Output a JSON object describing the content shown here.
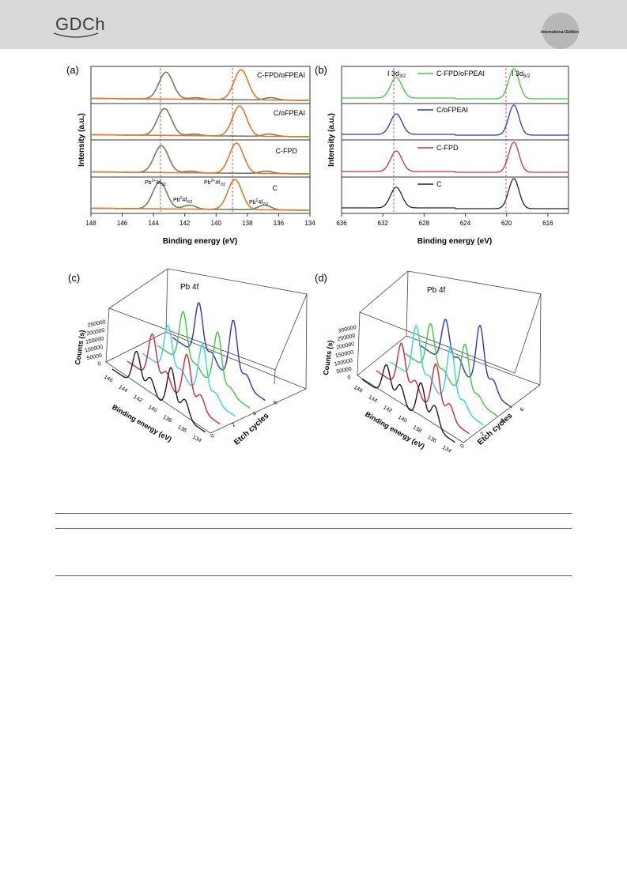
{
  "header": {
    "logo_text": "GDCh",
    "edition": "International Edition"
  },
  "panels": {
    "a": {
      "label": "(a)",
      "xlabel": "Binding energy (eV)",
      "ylabel": "Intensity (a.u.)",
      "ticks": [
        "148",
        "146",
        "144",
        "142",
        "140",
        "138",
        "136",
        "134"
      ],
      "traces": [
        "C-FPD/oFPEAI",
        "C/oFPEAI",
        "C-FPD",
        "C"
      ],
      "peak_labels": {
        "p1": "Pb",
        "p1_sup": "2+",
        "p1_rest": "4f",
        "p1_sub": "5/2",
        "p2": "Pb",
        "p2_sup": "0",
        "p2_rest": "4f",
        "p2_sub": "5/2",
        "p3": "Pb",
        "p3_sup": "2+",
        "p3_rest": "4f",
        "p3_sub": "7/2",
        "p4": "Pb",
        "p4_sup": "0",
        "p4_rest": "4f",
        "p4_sub": "7/2"
      }
    },
    "b": {
      "label": "(b)",
      "xlabel": "Binding energy (eV)",
      "ylabel": "Intensity (a.u.)",
      "ticks": [
        "636",
        "632",
        "628",
        "624",
        "620",
        "616"
      ],
      "traces": [
        "C-FPD/oFPEAI",
        "C/oFPEAI",
        "C-FPD",
        "C"
      ],
      "peak_left": "I 3d",
      "peak_left_sub": "3/2",
      "peak_right": "I 3d",
      "peak_right_sub": "5/2",
      "colors": [
        "#3ec83e",
        "#2f35c0",
        "#c8323a",
        "#222222"
      ]
    },
    "c": {
      "label": "(c)",
      "title": "Pb 4f",
      "zlabel": "Counts (s)",
      "xlabel": "Binding energy (eV)",
      "ylabel": "Etch cycles",
      "zticks": [
        "250000",
        "200000",
        "150000",
        "100000",
        "50000",
        "0"
      ],
      "xticks": [
        "146",
        "144",
        "142",
        "140",
        "138",
        "136",
        "134"
      ],
      "yticks": [
        "0",
        "2",
        "4",
        "6"
      ]
    },
    "d": {
      "label": "(d)",
      "title": "Pb 4f",
      "zlabel": "Counts (s)",
      "xlabel": "Binding energy (eV)",
      "ylabel": "Etch cycles",
      "zticks": [
        "300000",
        "250000",
        "200000",
        "150000",
        "100000",
        "50000",
        "0"
      ],
      "xticks": [
        "146",
        "144",
        "142",
        "140",
        "138",
        "136",
        "134"
      ],
      "yticks": [
        "0",
        "2",
        "4",
        "6"
      ]
    }
  },
  "chart_data": [
    {
      "type": "line",
      "panel": "a",
      "xlabel": "Binding energy (eV)",
      "ylabel": "Intensity (a.u.)",
      "xlim": [
        148,
        134
      ],
      "series": [
        {
          "name": "C-FPD/oFPEAI",
          "peaks": [
            143.2,
            138.4
          ]
        },
        {
          "name": "C/oFPEAI",
          "peaks": [
            143.3,
            138.4
          ]
        },
        {
          "name": "C-FPD",
          "peaks": [
            143.5,
            138.7
          ]
        },
        {
          "name": "C",
          "peaks": [
            143.6,
            138.8
          ]
        }
      ]
    },
    {
      "type": "line",
      "panel": "b",
      "xlabel": "Binding energy (eV)",
      "ylabel": "Intensity (a.u.)",
      "xlim": [
        636,
        614
      ],
      "series": [
        {
          "name": "C-FPD/oFPEAI",
          "peaks": [
            630.6,
            619.2
          ]
        },
        {
          "name": "C/oFPEAI",
          "peaks": [
            630.6,
            619.2
          ]
        },
        {
          "name": "C-FPD",
          "peaks": [
            630.7,
            619.3
          ]
        },
        {
          "name": "C",
          "peaks": [
            630.8,
            619.3
          ]
        }
      ]
    }
  ]
}
